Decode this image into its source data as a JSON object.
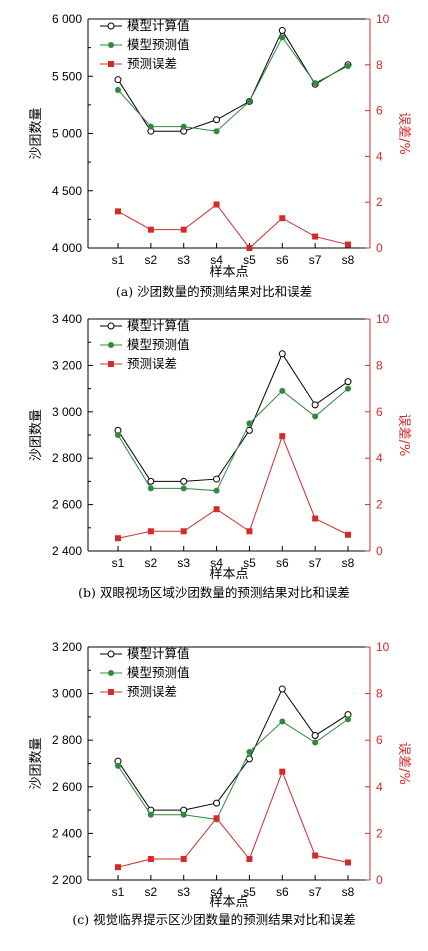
{
  "chart_data": [
    {
      "type": "line",
      "categories": [
        "s1",
        "s2",
        "s3",
        "s4",
        "s5",
        "s6",
        "s7",
        "s8"
      ],
      "xlabel": "样本点",
      "ylabel": "沙团数量",
      "ylabel_right": "误差/%",
      "ylim": [
        4000,
        6000
      ],
      "yticks": [
        "4 000",
        "4 500",
        "5 000",
        "5 500",
        "6 000"
      ],
      "ylim_right": [
        0,
        10
      ],
      "yticks_right": [
        "0",
        "2",
        "4",
        "6",
        "8",
        "10"
      ],
      "caption": "(a) 沙团数量的预测结果对比和误差",
      "legend_position": "top-left",
      "series": [
        {
          "name": "模型计算值",
          "axis": "left",
          "color": "#000000",
          "marker": "open-circle",
          "values": [
            5470,
            5020,
            5020,
            5120,
            5280,
            5900,
            5430,
            5600
          ]
        },
        {
          "name": "模型预测值",
          "axis": "left",
          "color": "#2e8b3c",
          "marker": "filled-circle",
          "values": [
            5380,
            5060,
            5060,
            5020,
            5280,
            5840,
            5440,
            5590
          ]
        },
        {
          "name": "预测误差",
          "axis": "right",
          "color": "#d42a2a",
          "marker": "square",
          "values": [
            1.6,
            0.8,
            0.8,
            1.9,
            0.0,
            1.3,
            0.5,
            0.15
          ]
        }
      ]
    },
    {
      "type": "line",
      "categories": [
        "s1",
        "s2",
        "s3",
        "s4",
        "s5",
        "s6",
        "s7",
        "s8"
      ],
      "xlabel": "样本点",
      "ylabel": "沙团数量",
      "ylabel_right": "误差/%",
      "ylim": [
        2400,
        3400
      ],
      "yticks": [
        "2 400",
        "2 600",
        "2 800",
        "3 000",
        "3 200",
        "3 400"
      ],
      "ylim_right": [
        0,
        10
      ],
      "yticks_right": [
        "0",
        "2",
        "4",
        "6",
        "8",
        "10"
      ],
      "caption": "(b) 双眼视场区域沙团数量的预测结果对比和误差",
      "legend_position": "top-left",
      "series": [
        {
          "name": "模型计算值",
          "axis": "left",
          "color": "#000000",
          "marker": "open-circle",
          "values": [
            2920,
            2700,
            2700,
            2710,
            2920,
            3250,
            3030,
            3130
          ]
        },
        {
          "name": "模型预测值",
          "axis": "left",
          "color": "#2e8b3c",
          "marker": "filled-circle",
          "values": [
            2900,
            2670,
            2670,
            2660,
            2950,
            3090,
            2980,
            3100
          ]
        },
        {
          "name": "预测误差",
          "axis": "right",
          "color": "#d42a2a",
          "marker": "square",
          "values": [
            0.55,
            0.85,
            0.85,
            1.8,
            0.85,
            4.95,
            1.4,
            0.7
          ]
        }
      ]
    },
    {
      "type": "line",
      "categories": [
        "s1",
        "s2",
        "s3",
        "s4",
        "s5",
        "s6",
        "s7",
        "s8"
      ],
      "xlabel": "样本点",
      "ylabel": "沙团数量",
      "ylabel_right": "误差/%",
      "ylim": [
        2200,
        3200
      ],
      "yticks": [
        "2 200",
        "2 400",
        "2 600",
        "2 800",
        "3 000",
        "3 200"
      ],
      "ylim_right": [
        0,
        10
      ],
      "yticks_right": [
        "0",
        "2",
        "4",
        "6",
        "8",
        "10"
      ],
      "caption": "(c) 视觉临界提示区沙团数量的预测结果对比和误差",
      "legend_position": "top-left",
      "series": [
        {
          "name": "模型计算值",
          "axis": "left",
          "color": "#000000",
          "marker": "open-circle",
          "values": [
            2710,
            2500,
            2500,
            2530,
            2720,
            3020,
            2820,
            2910
          ]
        },
        {
          "name": "模型预测值",
          "axis": "left",
          "color": "#2e8b3c",
          "marker": "filled-circle",
          "values": [
            2690,
            2480,
            2480,
            2460,
            2750,
            2880,
            2790,
            2890
          ]
        },
        {
          "name": "预测误差",
          "axis": "right",
          "color": "#d42a2a",
          "marker": "square",
          "values": [
            0.55,
            0.9,
            0.9,
            2.65,
            0.9,
            4.65,
            1.05,
            0.75
          ]
        }
      ]
    }
  ]
}
